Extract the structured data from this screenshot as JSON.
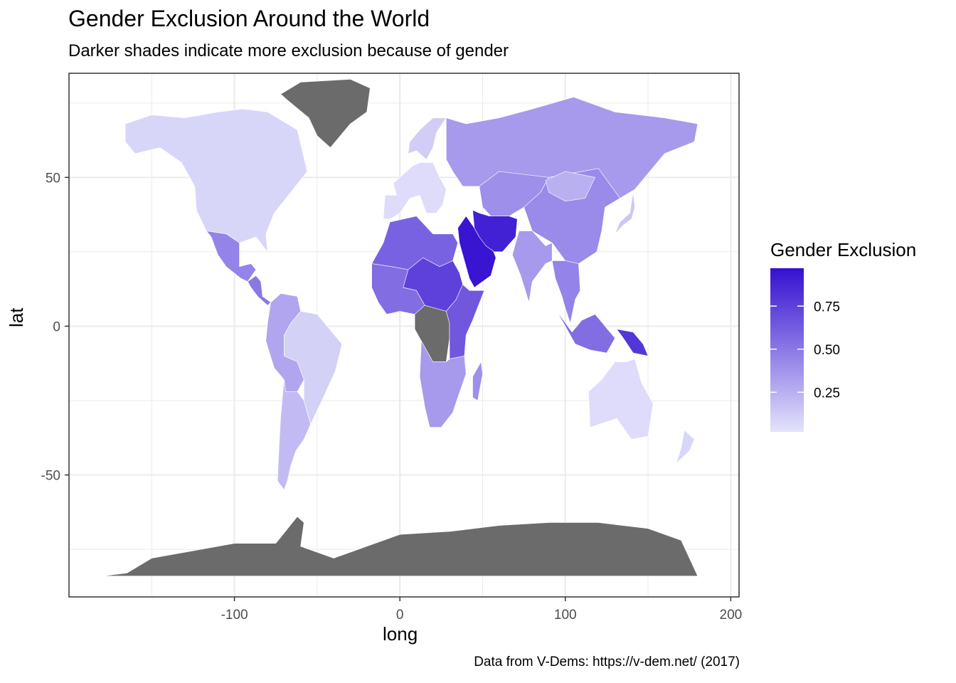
{
  "title": "Gender Exclusion Around the World",
  "subtitle": "Darker shades indicate more exclusion because of gender",
  "caption": "Data from V-Dems: https://v-dem.net/ (2017)",
  "colors": {
    "low": "#e3e3fb",
    "high": "#3510d0",
    "missing": "#6b6b6b",
    "grid": "#ebebeb"
  },
  "chart_data": {
    "type": "choropleth",
    "xlabel": "long",
    "ylabel": "lat",
    "xlim": [
      -200,
      205
    ],
    "ylim": [
      -91,
      85
    ],
    "x_ticks": [
      -100,
      0,
      100,
      200
    ],
    "x_tick_labels": [
      "-100",
      "0",
      "100",
      "200"
    ],
    "y_ticks": [
      -50,
      0,
      50
    ],
    "y_tick_labels": [
      "-50",
      "0",
      "50"
    ],
    "legend": {
      "title": "Gender Exclusion",
      "ticks": [
        0.25,
        0.5,
        0.75
      ],
      "tick_labels": [
        "0.25",
        "0.50",
        "0.75"
      ],
      "range": [
        0.02,
        0.97
      ]
    },
    "regions": [
      {
        "name": "North America (US/Canada)",
        "value": 0.08
      },
      {
        "name": "Greenland",
        "value": null
      },
      {
        "name": "Mexico",
        "value": 0.45
      },
      {
        "name": "Central America",
        "value": 0.5
      },
      {
        "name": "Brazil/Eastern South America",
        "value": 0.1
      },
      {
        "name": "Andean South America",
        "value": 0.3
      },
      {
        "name": "Southern Cone",
        "value": 0.2
      },
      {
        "name": "Western Europe",
        "value": 0.05
      },
      {
        "name": "Scandinavia",
        "value": 0.12
      },
      {
        "name": "Russia",
        "value": 0.35
      },
      {
        "name": "Central Asia",
        "value": 0.4
      },
      {
        "name": "China",
        "value": 0.42
      },
      {
        "name": "Mongolia",
        "value": 0.25
      },
      {
        "name": "India",
        "value": 0.35
      },
      {
        "name": "Middle East",
        "value": 0.95
      },
      {
        "name": "Iran/Afghanistan",
        "value": 0.9
      },
      {
        "name": "North Africa",
        "value": 0.6
      },
      {
        "name": "Sahel",
        "value": 0.75
      },
      {
        "name": "West Africa",
        "value": 0.55
      },
      {
        "name": "Central Africa",
        "value": null
      },
      {
        "name": "East Africa",
        "value": 0.65
      },
      {
        "name": "Southern Africa",
        "value": 0.35
      },
      {
        "name": "Madagascar",
        "value": 0.4
      },
      {
        "name": "Southeast Asia",
        "value": 0.45
      },
      {
        "name": "Indonesia",
        "value": 0.55
      },
      {
        "name": "Papua New Guinea",
        "value": 0.8
      },
      {
        "name": "Australia",
        "value": 0.05
      },
      {
        "name": "New Zealand",
        "value": 0.08
      },
      {
        "name": "Japan",
        "value": 0.15
      },
      {
        "name": "Antarctica",
        "value": null
      }
    ]
  }
}
